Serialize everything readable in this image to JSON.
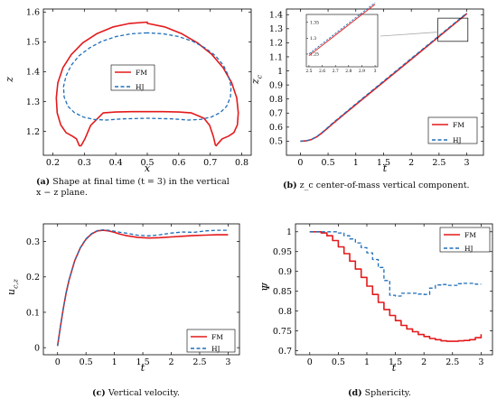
{
  "panels": [
    {
      "id": "a",
      "caption": {
        "letter": "(a)",
        "text": "Shape at final time (t = 3) in the vertical x − z plane."
      },
      "chart_data": {
        "type": "line",
        "xlabel": "x",
        "ylabel": "z",
        "xlim": [
          0.17,
          0.83
        ],
        "ylim": [
          1.12,
          1.61
        ],
        "xticks": [
          0.2,
          0.3,
          0.4,
          0.5,
          0.6,
          0.7,
          0.8
        ],
        "yticks": [
          1.2,
          1.3,
          1.4,
          1.5,
          1.6
        ],
        "xticklabels": [
          "0.2",
          "0.3",
          "0.4",
          "0.5",
          "0.6",
          "0.7",
          "0.8"
        ],
        "yticklabels": [
          "1.2",
          "1.3",
          "1.4",
          "1.5",
          "1.6"
        ],
        "legend": {
          "position": "center",
          "entries": [
            "FM",
            "HJ"
          ]
        },
        "series": [
          {
            "name": "FM",
            "color": "#e31a1c",
            "dash": "solid",
            "x": [
              0.5,
              0.445,
              0.392,
              0.341,
              0.295,
              0.259,
              0.232,
              0.216,
              0.211,
              0.214,
              0.225,
              0.242,
              0.262,
              0.275,
              0.281,
              0.284,
              0.29,
              0.302,
              0.32,
              0.36,
              0.4,
              0.45,
              0.5,
              0.55,
              0.6,
              0.64,
              0.68,
              0.698,
              0.71,
              0.716,
              0.719,
              0.725,
              0.738,
              0.758,
              0.775,
              0.786,
              0.789,
              0.784,
              0.768,
              0.741,
              0.705,
              0.659,
              0.608,
              0.555,
              0.5
            ],
            "y": [
              1.566,
              1.562,
              1.55,
              1.528,
              1.497,
              1.458,
              1.413,
              1.363,
              1.312,
              1.262,
              1.222,
              1.196,
              1.184,
              1.175,
              1.16,
              1.152,
              1.152,
              1.175,
              1.22,
              1.262,
              1.265,
              1.266,
              1.266,
              1.266,
              1.265,
              1.262,
              1.244,
              1.22,
              1.182,
              1.155,
              1.152,
              1.16,
              1.175,
              1.184,
              1.196,
              1.222,
              1.262,
              1.312,
              1.363,
              1.413,
              1.458,
              1.497,
              1.528,
              1.55,
              1.562
            ]
          },
          {
            "name": "HJ",
            "color": "#1f6eb8",
            "dash": "dashed",
            "x": [
              0.5,
              0.45,
              0.402,
              0.356,
              0.317,
              0.283,
              0.258,
              0.242,
              0.234,
              0.236,
              0.248,
              0.268,
              0.297,
              0.33,
              0.37,
              0.42,
              0.5,
              0.58,
              0.63,
              0.67,
              0.703,
              0.732,
              0.752,
              0.764,
              0.766,
              0.758,
              0.742,
              0.717,
              0.683,
              0.644,
              0.598,
              0.55
            ],
            "y": [
              1.53,
              1.527,
              1.518,
              1.502,
              1.48,
              1.453,
              1.421,
              1.386,
              1.35,
              1.315,
              1.284,
              1.263,
              1.248,
              1.24,
              1.238,
              1.242,
              1.244,
              1.242,
              1.238,
              1.24,
              1.248,
              1.263,
              1.284,
              1.315,
              1.35,
              1.386,
              1.421,
              1.453,
              1.48,
              1.502,
              1.518,
              1.527
            ]
          }
        ]
      }
    },
    {
      "id": "b",
      "caption": {
        "letter": "(b)",
        "text": "z_c center-of-mass vertical component."
      },
      "chart_data": {
        "type": "line",
        "xlabel": "t",
        "ylabel": "z_c",
        "xlim": [
          -0.25,
          3.3
        ],
        "ylim": [
          0.4,
          1.44
        ],
        "xticks": [
          0,
          0.5,
          1,
          1.5,
          2,
          2.5,
          3
        ],
        "yticks": [
          0.5,
          0.6,
          0.7,
          0.8,
          0.9,
          1,
          1.1,
          1.2,
          1.3,
          1.4
        ],
        "xticklabels": [
          "0",
          "0.5",
          "1",
          "1.5",
          "2",
          "2.5",
          "3"
        ],
        "yticklabels": [
          "0.5",
          "0.6",
          "0.7",
          "0.8",
          "0.9",
          "1",
          "1.1",
          "1.2",
          "1.3",
          "1.4"
        ],
        "legend": {
          "position": "bottom-right",
          "entries": [
            "FM",
            "HJ"
          ]
        },
        "inset": {
          "xlim": [
            2.48,
            3.02
          ],
          "ylim": [
            1.21,
            1.375
          ],
          "xticks": [
            2.5,
            2.6,
            2.7,
            2.8,
            2.9,
            3
          ],
          "yticks": [
            1.25,
            1.3,
            1.35
          ],
          "xticklabels": [
            "2.5",
            "2.6",
            "2.7",
            "2.8",
            "2.9",
            "3"
          ],
          "yticklabels": [
            "1.25",
            "1.3",
            "1.35"
          ]
        },
        "series": [
          {
            "name": "FM",
            "color": "#e31a1c",
            "dash": "solid",
            "x": [
              0,
              0.1,
              0.2,
              0.3,
              0.4,
              0.5,
              0.6,
              0.8,
              1,
              1.5,
              2,
              2.5,
              3
            ],
            "y": [
              0.5,
              0.502,
              0.512,
              0.532,
              0.562,
              0.596,
              0.63,
              0.695,
              0.76,
              0.921,
              1.083,
              1.245,
              1.407
            ]
          },
          {
            "name": "HJ",
            "color": "#1f6eb8",
            "dash": "dashed",
            "x": [
              0,
              0.1,
              0.2,
              0.3,
              0.4,
              0.5,
              0.6,
              0.8,
              1,
              1.5,
              2,
              2.5,
              3
            ],
            "y": [
              0.5,
              0.502,
              0.513,
              0.534,
              0.565,
              0.6,
              0.635,
              0.7,
              0.766,
              0.928,
              1.089,
              1.25,
              1.412
            ]
          }
        ]
      }
    },
    {
      "id": "c",
      "caption": {
        "letter": "(c)",
        "text": "Vertical velocity."
      },
      "chart_data": {
        "type": "line",
        "xlabel": "t",
        "ylabel": "u_c,z",
        "xlim": [
          -0.25,
          3.2
        ],
        "ylim": [
          -0.02,
          0.35
        ],
        "xticks": [
          0,
          0.5,
          1,
          1.5,
          2,
          2.5,
          3
        ],
        "yticks": [
          0,
          0.1,
          0.2,
          0.3
        ],
        "xticklabels": [
          "0",
          "0.5",
          "1",
          "1.5",
          "2",
          "2.5",
          "3"
        ],
        "yticklabels": [
          "0",
          "0.1",
          "0.2",
          "0.3"
        ],
        "legend": {
          "position": "bottom-right",
          "entries": [
            "FM",
            "HJ"
          ]
        },
        "series": [
          {
            "name": "FM",
            "color": "#e31a1c",
            "dash": "solid",
            "x": [
              0,
              0.05,
              0.1,
              0.15,
              0.2,
              0.3,
              0.4,
              0.5,
              0.6,
              0.7,
              0.8,
              0.9,
              1,
              1.1,
              1.2,
              1.4,
              1.6,
              1.8,
              2,
              2.2,
              2.4,
              2.6,
              2.8,
              3
            ],
            "y": [
              0.005,
              0.06,
              0.11,
              0.155,
              0.19,
              0.245,
              0.282,
              0.307,
              0.322,
              0.33,
              0.332,
              0.33,
              0.326,
              0.321,
              0.317,
              0.312,
              0.31,
              0.311,
              0.313,
              0.315,
              0.317,
              0.318,
              0.319,
              0.319
            ]
          },
          {
            "name": "HJ",
            "color": "#1f6eb8",
            "dash": "dashed",
            "x": [
              0,
              0.05,
              0.1,
              0.15,
              0.2,
              0.3,
              0.4,
              0.5,
              0.6,
              0.7,
              0.8,
              0.9,
              1,
              1.1,
              1.2,
              1.4,
              1.6,
              1.8,
              2,
              2.2,
              2.4,
              2.6,
              2.8,
              3
            ],
            "y": [
              0.005,
              0.06,
              0.11,
              0.156,
              0.191,
              0.246,
              0.283,
              0.308,
              0.323,
              0.331,
              0.333,
              0.332,
              0.329,
              0.326,
              0.324,
              0.318,
              0.316,
              0.319,
              0.324,
              0.327,
              0.326,
              0.33,
              0.332,
              0.332
            ]
          }
        ]
      }
    },
    {
      "id": "d",
      "caption": {
        "letter": "(d)",
        "text": "Sphericity."
      },
      "chart_data": {
        "type": "line",
        "step": true,
        "xlabel": "t",
        "ylabel": "Ψ",
        "xlim": [
          -0.25,
          3.2
        ],
        "ylim": [
          0.69,
          1.02
        ],
        "xticks": [
          0,
          0.5,
          1,
          1.5,
          2,
          2.5,
          3
        ],
        "yticks": [
          0.7,
          0.75,
          0.8,
          0.85,
          0.9,
          0.95,
          1
        ],
        "xticklabels": [
          "0",
          "0.5",
          "1",
          "1.5",
          "2",
          "2.5",
          "3"
        ],
        "yticklabels": [
          "0.7",
          "0.75",
          "0.8",
          "0.85",
          "0.9",
          "0.95",
          "1"
        ],
        "legend": {
          "position": "top-right",
          "entries": [
            "FM",
            "HJ"
          ]
        },
        "series": [
          {
            "name": "FM",
            "color": "#e31a1c",
            "dash": "solid",
            "x": [
              0,
              0.1,
              0.2,
              0.3,
              0.4,
              0.5,
              0.6,
              0.7,
              0.8,
              0.9,
              1,
              1.1,
              1.2,
              1.3,
              1.4,
              1.5,
              1.6,
              1.7,
              1.8,
              1.9,
              2,
              2.1,
              2.2,
              2.3,
              2.4,
              2.5,
              2.6,
              2.7,
              2.8,
              2.9,
              3
            ],
            "y": [
              1,
              1,
              0.997,
              0.99,
              0.978,
              0.962,
              0.945,
              0.926,
              0.906,
              0.885,
              0.863,
              0.842,
              0.822,
              0.804,
              0.789,
              0.776,
              0.764,
              0.755,
              0.748,
              0.741,
              0.736,
              0.731,
              0.728,
              0.725,
              0.724,
              0.724,
              0.725,
              0.726,
              0.728,
              0.733,
              0.742
            ]
          },
          {
            "name": "HJ",
            "color": "#1f6eb8",
            "dash": "dashed",
            "x": [
              0,
              0.1,
              0.2,
              0.3,
              0.4,
              0.5,
              0.6,
              0.7,
              0.8,
              0.9,
              1,
              1.1,
              1.2,
              1.3,
              1.4,
              1.5,
              1.6,
              1.7,
              1.8,
              1.9,
              2,
              2.1,
              2.2,
              2.3,
              2.4,
              2.5,
              2.6,
              2.7,
              2.8,
              2.9,
              3
            ],
            "y": [
              1,
              1,
              1,
              1,
              1,
              0.997,
              0.99,
              0.982,
              0.972,
              0.96,
              0.947,
              0.93,
              0.91,
              0.877,
              0.84,
              0.838,
              0.845,
              0.845,
              0.845,
              0.843,
              0.842,
              0.858,
              0.866,
              0.867,
              0.865,
              0.865,
              0.869,
              0.87,
              0.87,
              0.868,
              0.868
            ]
          }
        ]
      }
    }
  ]
}
